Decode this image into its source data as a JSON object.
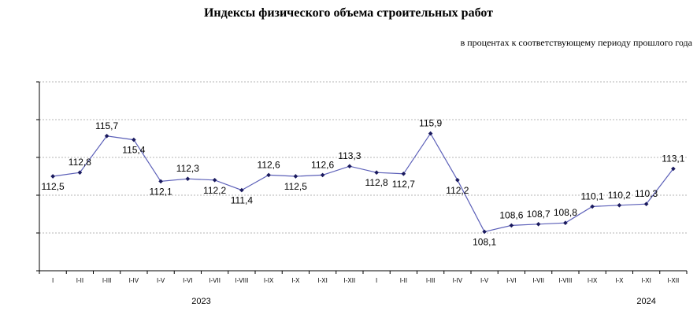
{
  "chart_data": {
    "type": "line",
    "title": "Индексы физического объема строительных работ",
    "subtitle": "в процентах к соответствующему периоду прошлого года",
    "line_color": "#5b5fb8",
    "grid": true,
    "ylim": [
      105,
      120
    ],
    "categories": [
      "I",
      "I-II",
      "I-III",
      "I-IV",
      "I-V",
      "I-VI",
      "I-VII",
      "I-VIII",
      "I-IX",
      "I-X",
      "I-XI",
      "I-XII",
      "I",
      "I-II",
      "I-III",
      "I-IV",
      "I-V",
      "I-VI",
      "I-VII",
      "I-VIII",
      "I-IX",
      "I-X",
      "I-XI",
      "I-XII"
    ],
    "values": [
      112.5,
      112.8,
      115.7,
      115.4,
      112.1,
      112.3,
      112.2,
      111.4,
      112.6,
      112.5,
      112.6,
      113.3,
      112.8,
      112.7,
      115.9,
      112.2,
      108.1,
      108.6,
      108.7,
      108.8,
      110.1,
      110.2,
      110.3,
      113.1
    ],
    "labels": [
      "112,5",
      "112,8",
      "115,7",
      "115,4",
      "112,1",
      "112,3",
      "112,2",
      "111,4",
      "112,6",
      "112,5",
      "112,6",
      "113,3",
      "112,8",
      "112,7",
      "115,9",
      "112,2",
      "108,1",
      "108,6",
      "108,7",
      "108,8",
      "110,1",
      "110,2",
      "110,3",
      "113,1"
    ],
    "years": [
      {
        "label": "2023",
        "start": 0,
        "end": 11
      },
      {
        "label": "2024",
        "start": 12,
        "end": 23
      }
    ]
  }
}
